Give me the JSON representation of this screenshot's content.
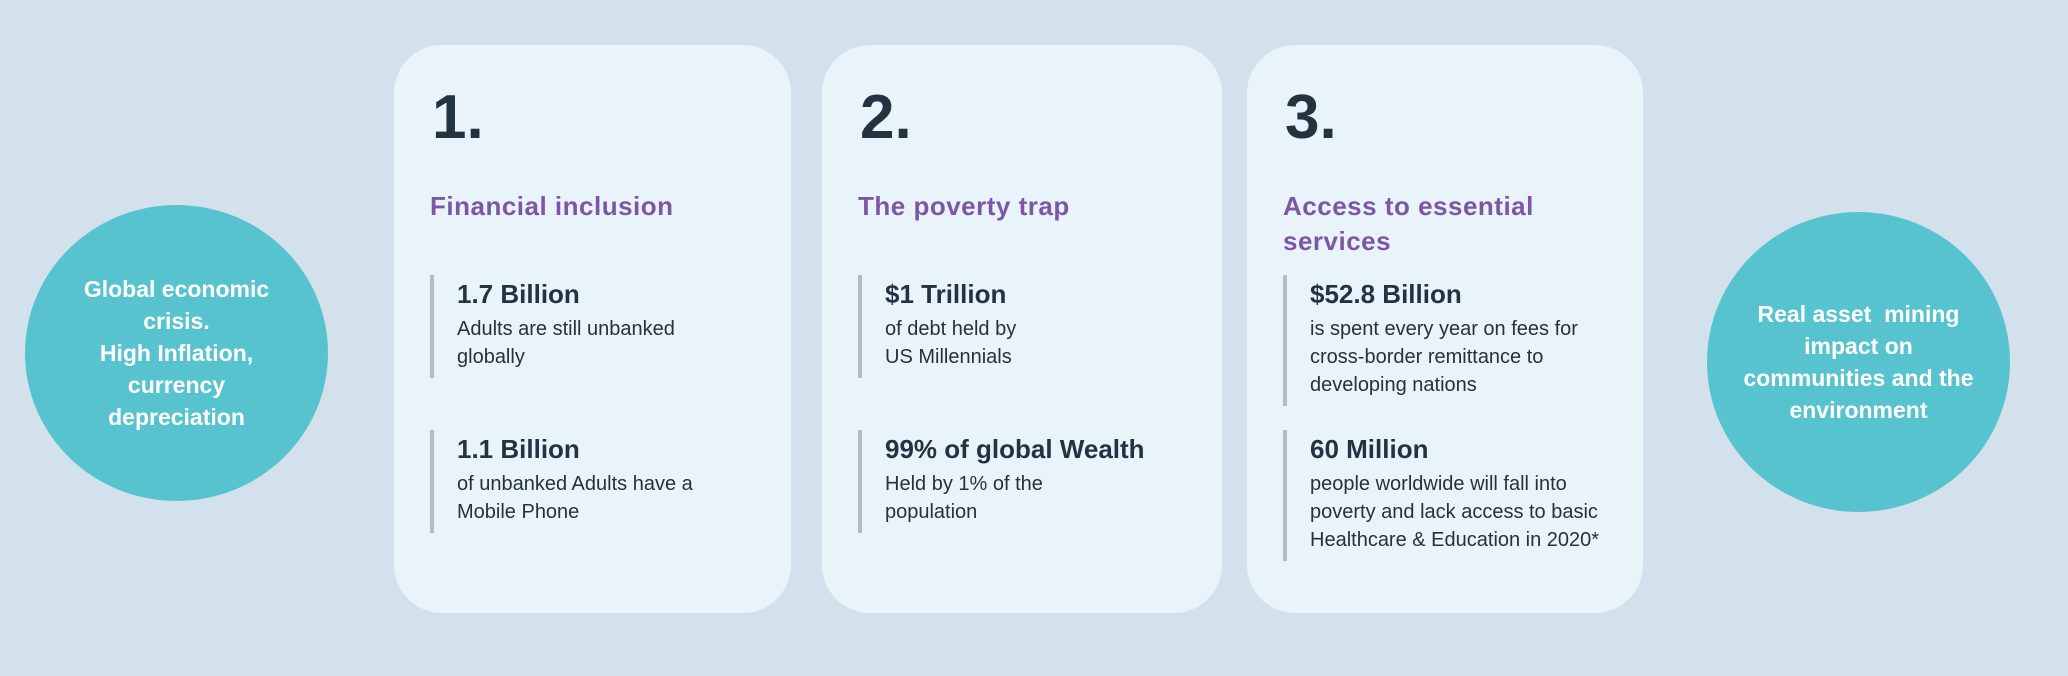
{
  "colors": {
    "page_background": "#d2e1ec",
    "card_background": "#e9f3fa",
    "bubble_teal": "#57c3ce",
    "title_purple": "#7d57a5",
    "text_dark": "#243340",
    "stat_bar_gray": "#b3bcc3",
    "bubble_text_white": "#ffffff"
  },
  "left_bubble": {
    "text": "Global economic\ncrisis.\nHigh Inflation,\ncurrency\ndepreciation"
  },
  "right_bubble": {
    "text": "Real asset  mining\nimpact on\ncommunities and the\nenvironment"
  },
  "cards": [
    {
      "number": "1.",
      "title": "Financial inclusion",
      "stats": [
        {
          "value": "1.7 Billion",
          "description": "Adults are still unbanked\nglobally"
        },
        {
          "value": "1.1 Billion",
          "description": "of unbanked Adults have a\nMobile Phone"
        }
      ]
    },
    {
      "number": "2.",
      "title": "The poverty trap",
      "stats": [
        {
          "value": "$1 Trillion",
          "description": "of debt held by\nUS Millennials"
        },
        {
          "value": "99% of global Wealth",
          "description": "Held by 1% of the\npopulation"
        }
      ]
    },
    {
      "number": "3.",
      "title": "Access to essential\nservices",
      "stats": [
        {
          "value": "$52.8 Billion",
          "description": "is spent every year on fees for\ncross-border remittance to\ndeveloping nations"
        },
        {
          "value": "60 Million",
          "description": "people worldwide will fall into\npoverty and lack access to basic\nHealthcare & Education in 2020*"
        }
      ]
    }
  ]
}
